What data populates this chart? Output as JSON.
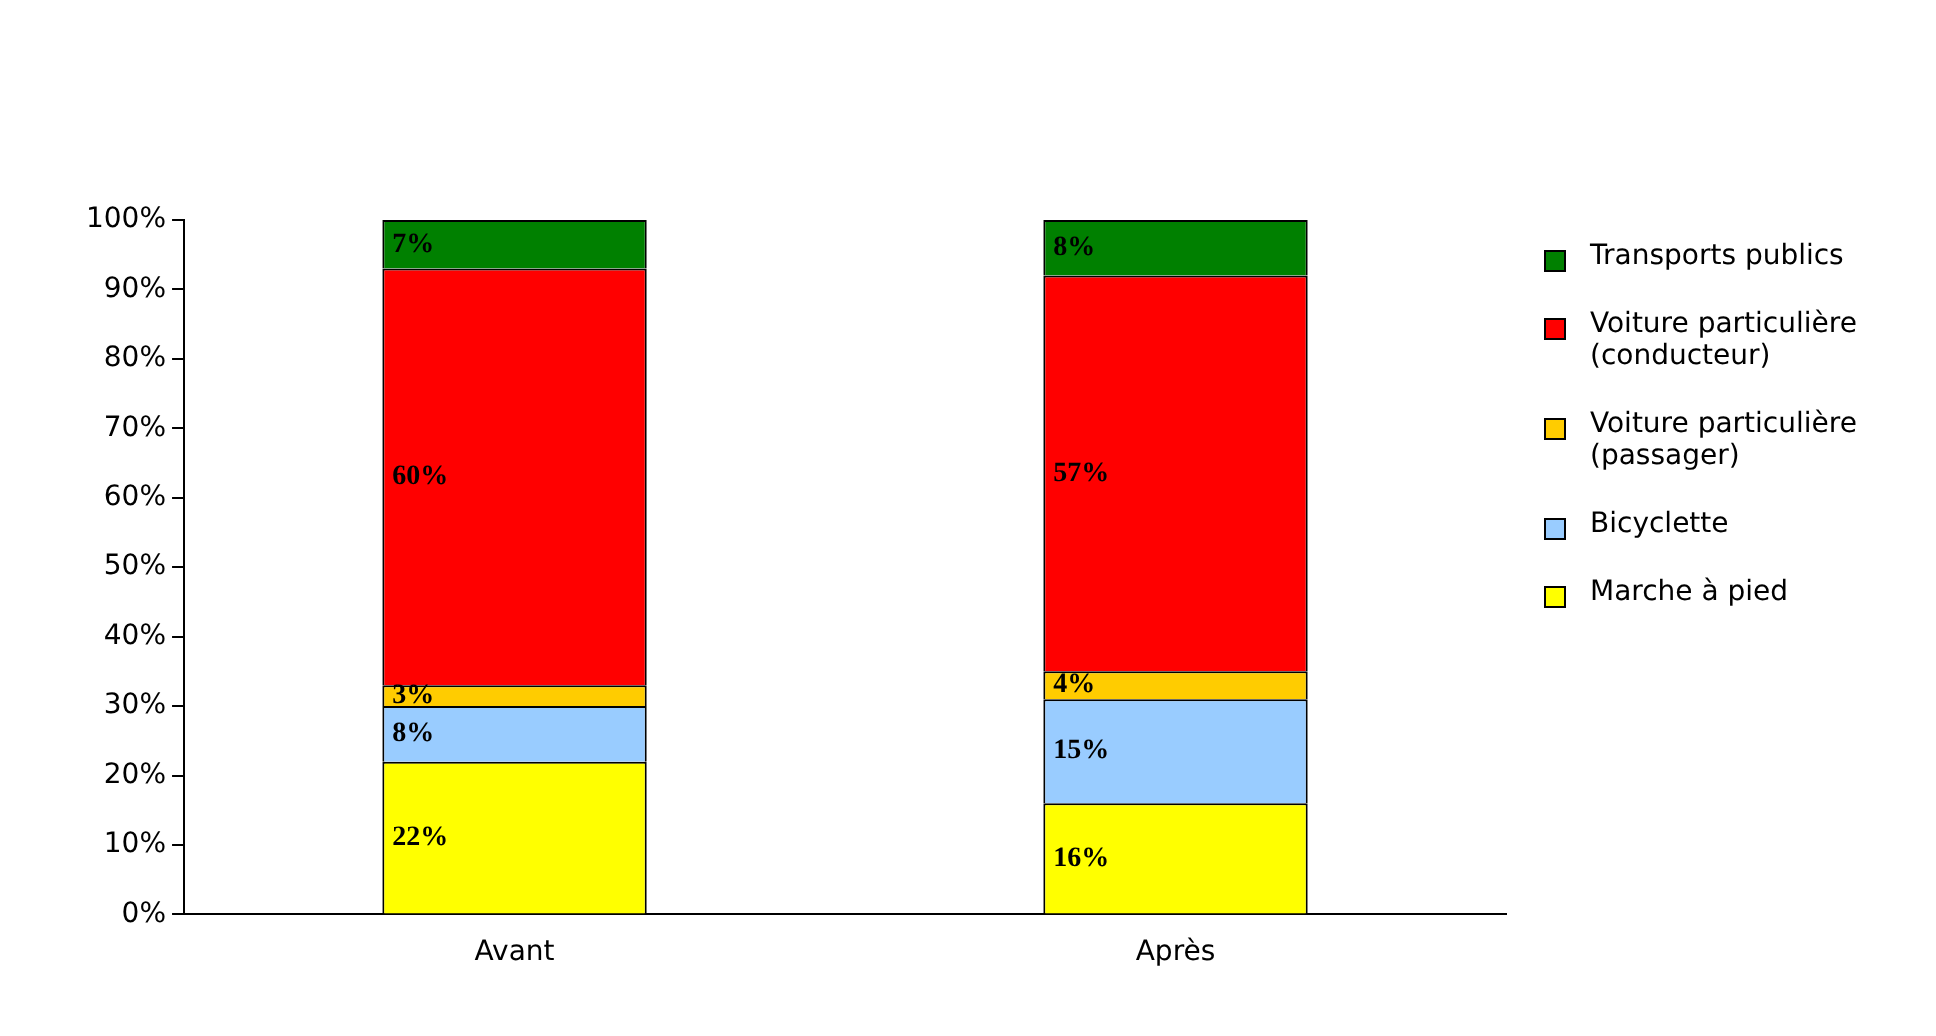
{
  "chart_data": {
    "type": "bar",
    "stacked": true,
    "categories": [
      "Avant",
      "Après"
    ],
    "series": [
      {
        "name": "Marche à pied",
        "color": "#ffff00",
        "values": [
          22,
          16
        ],
        "value_labels": [
          "22%",
          "16%"
        ]
      },
      {
        "name": "Bicyclette",
        "color": "#99ccff",
        "values": [
          8,
          15
        ],
        "value_labels": [
          "8%",
          "15%"
        ]
      },
      {
        "name": "Voiture particulière (passager)",
        "color": "#ffcc00",
        "values": [
          3,
          4
        ],
        "value_labels": [
          "3%",
          "4%"
        ]
      },
      {
        "name": "Voiture particulière (conducteur)",
        "color": "#ff0000",
        "values": [
          60,
          57
        ],
        "value_labels": [
          "60%",
          "57%"
        ]
      },
      {
        "name": "Transports publics",
        "color": "#008000",
        "values": [
          7,
          8
        ],
        "value_labels": [
          "7%",
          "8%"
        ]
      }
    ],
    "ylim": [
      0,
      100
    ],
    "yticks": [
      {
        "value": 0,
        "label": "0%"
      },
      {
        "value": 10,
        "label": "10%"
      },
      {
        "value": 20,
        "label": "20%"
      },
      {
        "value": 30,
        "label": "30%"
      },
      {
        "value": 40,
        "label": "40%"
      },
      {
        "value": 50,
        "label": "50%"
      },
      {
        "value": 60,
        "label": "60%"
      },
      {
        "value": 70,
        "label": "70%"
      },
      {
        "value": 80,
        "label": "80%"
      },
      {
        "value": 90,
        "label": "90%"
      },
      {
        "value": 100,
        "label": "100%"
      }
    ],
    "grid": false,
    "legend": "right"
  }
}
